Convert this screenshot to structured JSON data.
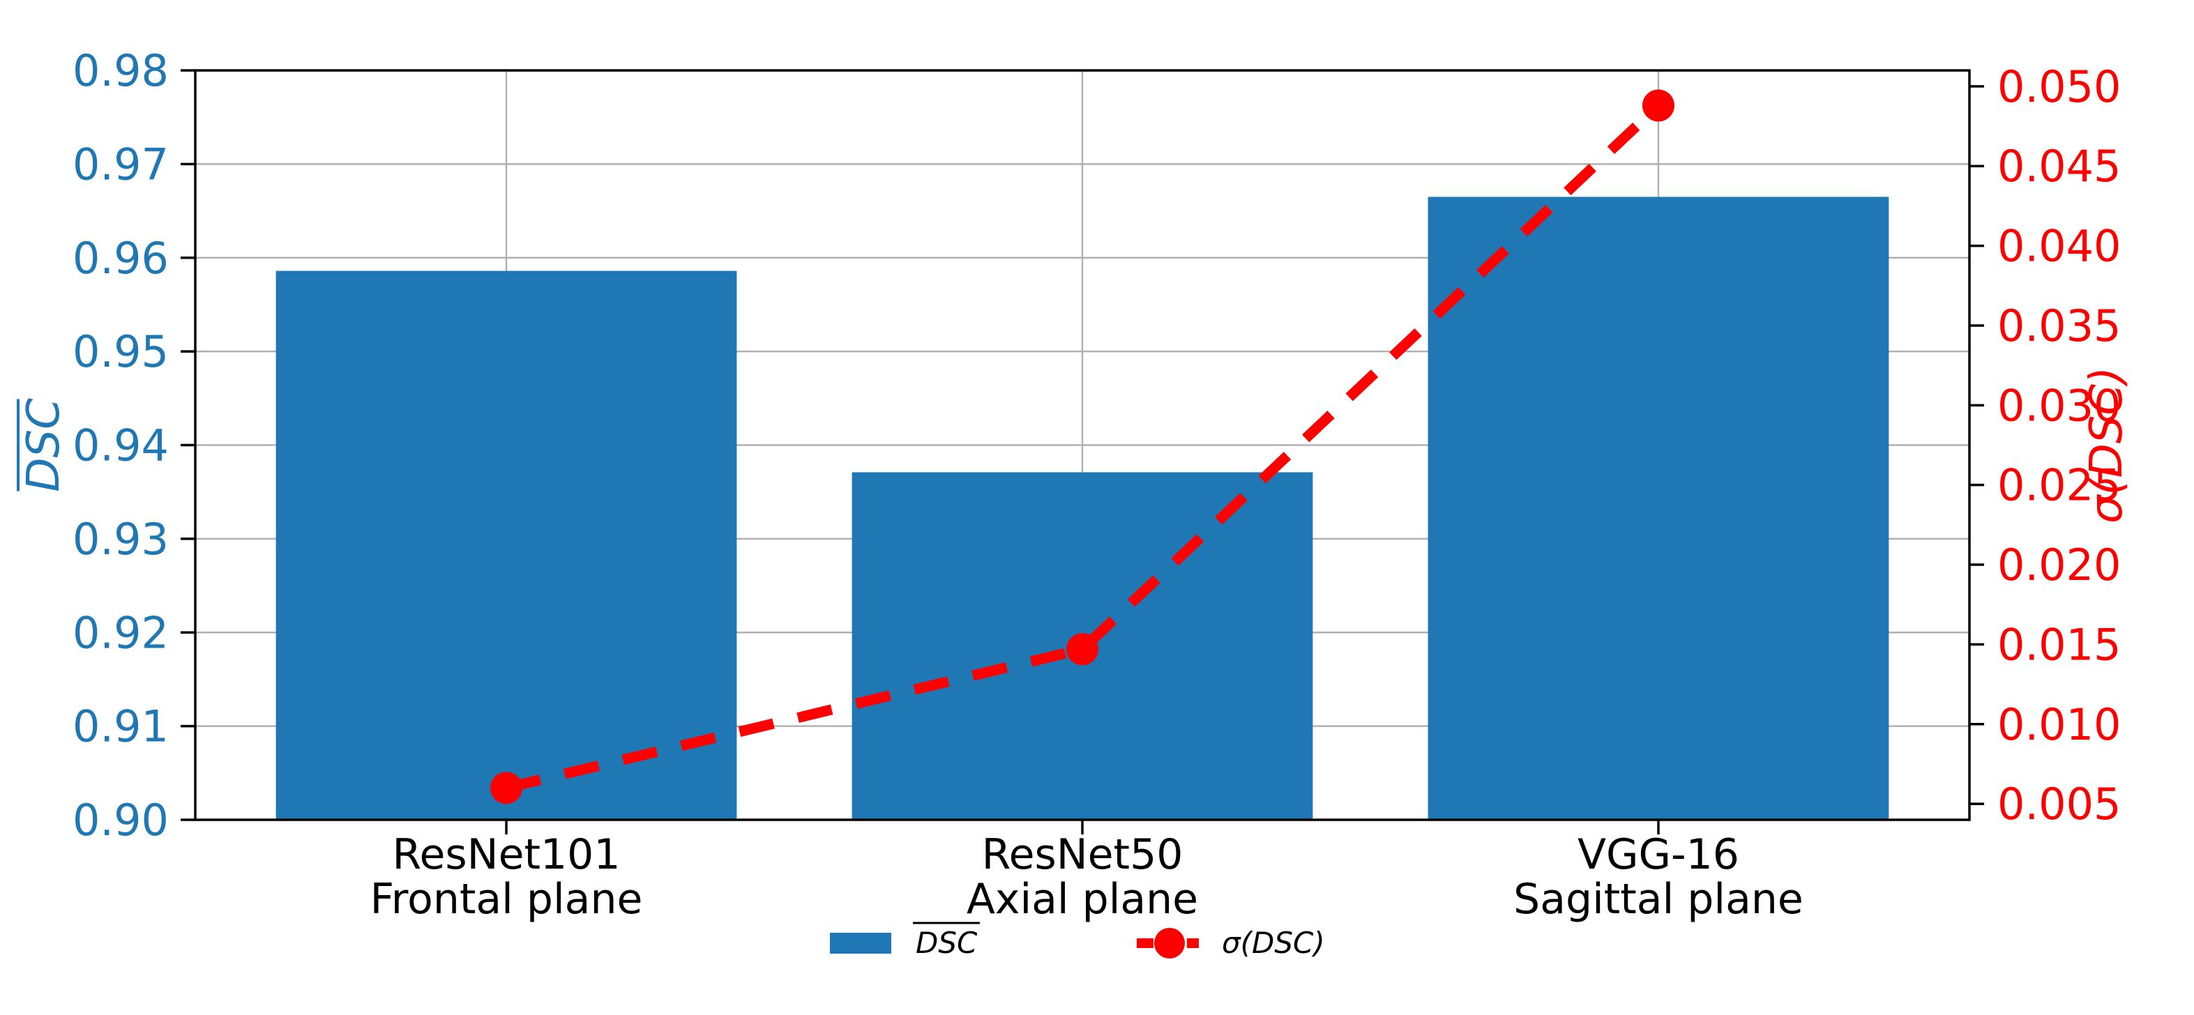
{
  "chart_data": {
    "type": "bar",
    "title": "",
    "categories": [
      [
        "ResNet101",
        "Frontal plane"
      ],
      [
        "ResNet50",
        "Axial plane"
      ],
      [
        "VGG-16",
        "Sagittal plane"
      ]
    ],
    "series": [
      {
        "name": "DSC",
        "overline": true,
        "type": "bar",
        "axis": "left",
        "color": "#1f77b4",
        "values": [
          0.9586,
          0.9371,
          0.9665
        ]
      },
      {
        "name": "σ(DSC)",
        "overline": false,
        "type": "line",
        "axis": "right",
        "color": "#ff0000",
        "linestyle": "dashed",
        "marker": "circle",
        "values": [
          0.006,
          0.0147,
          0.0488
        ]
      }
    ],
    "left_axis": {
      "label": "DSC",
      "overline": true,
      "color": "#1f77b4",
      "min": 0.9,
      "max": 0.98,
      "ticks": [
        0.9,
        0.91,
        0.92,
        0.93,
        0.94,
        0.95,
        0.96,
        0.97,
        0.98
      ],
      "tick_labels": [
        "0.90",
        "0.91",
        "0.92",
        "0.93",
        "0.94",
        "0.95",
        "0.96",
        "0.97",
        "0.98"
      ]
    },
    "right_axis": {
      "label": "σ(DSC)",
      "overline": false,
      "color": "#ff0000",
      "min": 0.004,
      "max": 0.051,
      "ticks": [
        0.005,
        0.01,
        0.015,
        0.02,
        0.025,
        0.03,
        0.035,
        0.04,
        0.045,
        0.05
      ],
      "tick_labels": [
        "0.005",
        "0.010",
        "0.015",
        "0.020",
        "0.025",
        "0.030",
        "0.035",
        "0.040",
        "0.045",
        "0.050"
      ]
    },
    "grid": {
      "show": true,
      "color": "#b0b0b0",
      "axes": "both"
    },
    "legend": {
      "position": "bottom-center",
      "entries": [
        {
          "label": "DSC",
          "overline": true,
          "swatch": "bar",
          "color": "#1f77b4"
        },
        {
          "label": "σ(DSC)",
          "overline": false,
          "swatch": "dashed-line-circle",
          "color": "#ff0000"
        }
      ]
    },
    "spine_color": "#000000",
    "tick_label_colors": {
      "left": "#1f77b4",
      "right": "#ff0000",
      "bottom": "#000000"
    },
    "background": "#ffffff"
  }
}
